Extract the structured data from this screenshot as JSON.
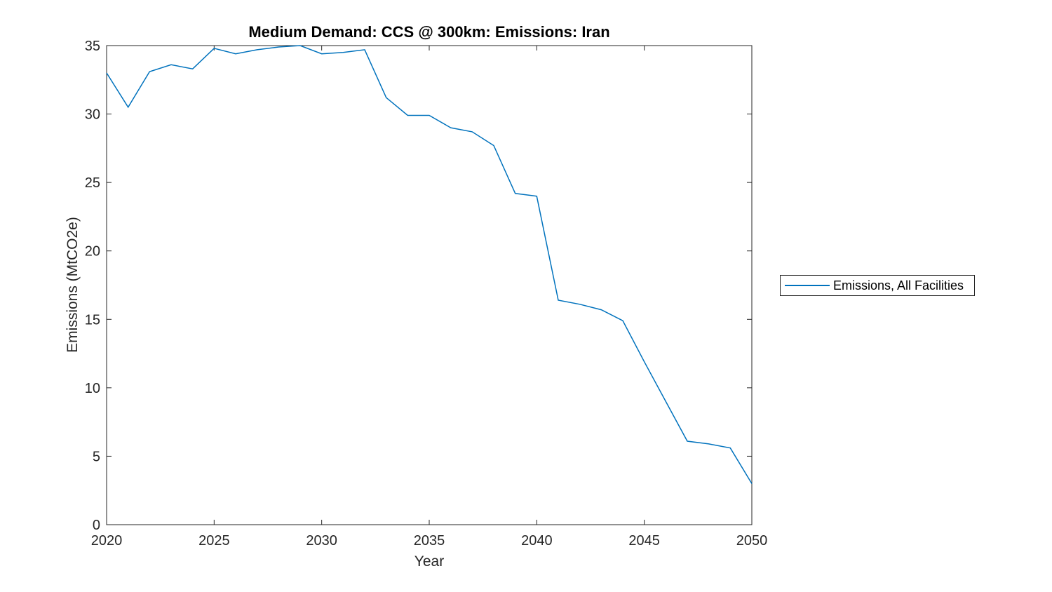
{
  "chart_data": {
    "type": "line",
    "title": "Medium Demand: CCS @ 300km: Emissions: Iran",
    "xlabel": "Year",
    "ylabel": "Emissions (MtCO2e)",
    "x": [
      2020,
      2021,
      2022,
      2023,
      2024,
      2025,
      2026,
      2027,
      2028,
      2029,
      2030,
      2031,
      2032,
      2033,
      2034,
      2035,
      2036,
      2037,
      2038,
      2039,
      2040,
      2041,
      2042,
      2043,
      2044,
      2045,
      2046,
      2047,
      2048,
      2049,
      2050
    ],
    "series": [
      {
        "name": "Emissions, All Facilities",
        "color": "#0072BD",
        "values": [
          33.0,
          30.5,
          33.1,
          33.6,
          33.3,
          34.8,
          34.4,
          34.7,
          34.9,
          35.0,
          34.4,
          34.5,
          34.7,
          31.2,
          29.9,
          29.9,
          29.0,
          28.7,
          27.7,
          24.2,
          24.0,
          16.4,
          16.1,
          15.7,
          14.9,
          11.9,
          9.0,
          6.1,
          5.9,
          5.6,
          3.0
        ]
      }
    ],
    "xlim": [
      2020,
      2050
    ],
    "ylim": [
      0,
      35
    ],
    "xticks": [
      2020,
      2025,
      2030,
      2035,
      2040,
      2045,
      2050
    ],
    "yticks": [
      0,
      5,
      10,
      15,
      20,
      25,
      30,
      35
    ],
    "grid": false,
    "legend_position": "outside-right",
    "axis_color": "#262626",
    "line_color": "#0072BD",
    "background_color": "#ffffff"
  }
}
